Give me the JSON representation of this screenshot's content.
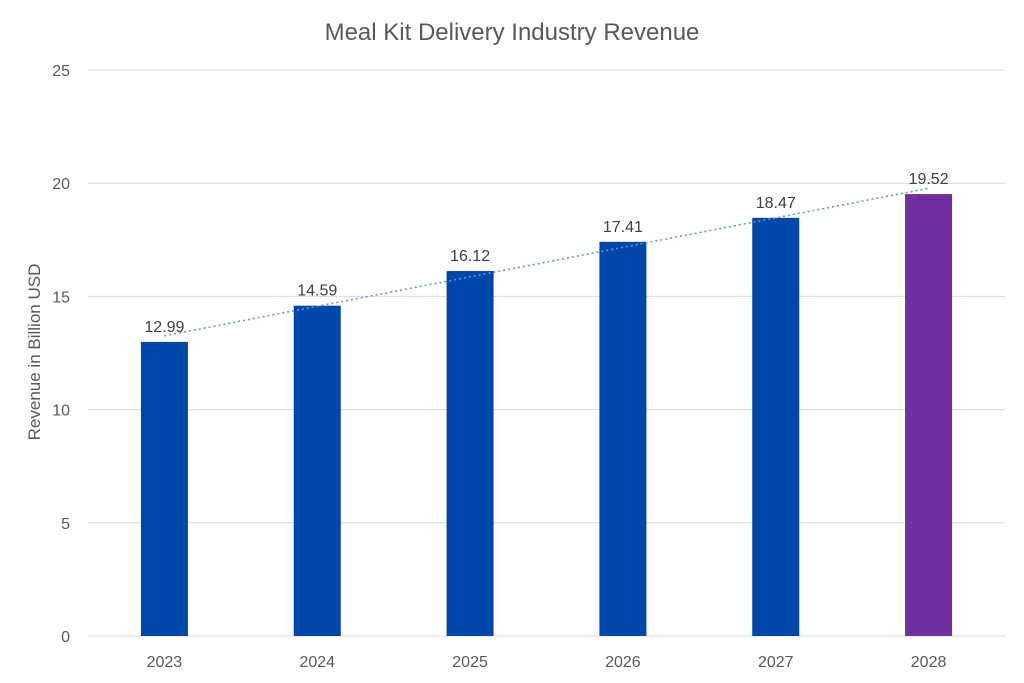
{
  "chart_data": {
    "type": "bar",
    "title": "Meal Kit Delivery Industry Revenue",
    "xlabel": "",
    "ylabel": "Revenue in Billion USD",
    "categories": [
      "2023",
      "2024",
      "2025",
      "2026",
      "2027",
      "2028"
    ],
    "values": [
      12.99,
      14.59,
      16.12,
      17.41,
      18.47,
      19.52
    ],
    "value_labels": [
      "12.99",
      "14.59",
      "16.12",
      "17.41",
      "18.47",
      "19.52"
    ],
    "bar_colors": [
      "#0047ab",
      "#0047ab",
      "#0047ab",
      "#0047ab",
      "#0047ab",
      "#7030a0"
    ],
    "ylim": [
      0,
      25
    ],
    "yticks": [
      "0",
      "5",
      "10",
      "15",
      "20",
      "25"
    ],
    "grid": true,
    "trendline": {
      "type": "linear",
      "color": "#5b9bd5",
      "style": "dotted"
    }
  }
}
